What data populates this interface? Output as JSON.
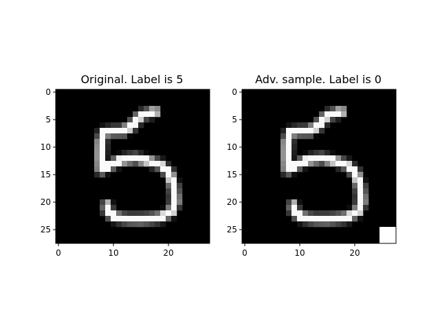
{
  "chart_data": [
    {
      "type": "heatmap",
      "title": "Original. Label is 5",
      "colormap": "gray",
      "xlim": [
        -0.5,
        27.5
      ],
      "ylim": [
        27.5,
        -0.5
      ],
      "x_ticks": [
        0,
        10,
        20
      ],
      "y_ticks": [
        0,
        5,
        10,
        15,
        20,
        25
      ],
      "shape": [
        28,
        28
      ],
      "strokes": [
        [
          [
            17.5,
            3.6
          ],
          [
            15,
            4.2
          ],
          [
            13.2,
            6.2
          ],
          [
            11.8,
            7.1
          ]
        ],
        [
          [
            11.8,
            7.1
          ],
          [
            9.8,
            7.1
          ],
          [
            8.2,
            7.3
          ]
        ],
        [
          [
            8.2,
            7.3
          ],
          [
            7.8,
            9
          ],
          [
            7.7,
            12
          ],
          [
            7.8,
            14.1
          ]
        ],
        [
          [
            7.8,
            14.1
          ],
          [
            9.6,
            13.2
          ],
          [
            11.5,
            12.3
          ],
          [
            14,
            12
          ],
          [
            16,
            12.4
          ],
          [
            18.5,
            13.2
          ],
          [
            20.2,
            14.8
          ]
        ],
        [
          [
            20.2,
            14.8
          ],
          [
            21,
            17.2
          ],
          [
            21.2,
            19.8
          ],
          [
            20.6,
            21.7
          ]
        ],
        [
          [
            20.6,
            21.7
          ],
          [
            18.5,
            22.8
          ],
          [
            15.5,
            23.1
          ],
          [
            12.5,
            23.1
          ],
          [
            10.2,
            22.7
          ],
          [
            9.1,
            21.9
          ],
          [
            8.8,
            20.6
          ]
        ]
      ],
      "extra_pixels": []
    },
    {
      "type": "heatmap",
      "title": "Adv. sample. Label is 0",
      "colormap": "gray",
      "xlim": [
        -0.5,
        27.5
      ],
      "ylim": [
        27.5,
        -0.5
      ],
      "x_ticks": [
        0,
        10,
        20
      ],
      "y_ticks": [
        0,
        5,
        10,
        15,
        20,
        25
      ],
      "shape": [
        28,
        28
      ],
      "strokes": [
        [
          [
            17.5,
            3.6
          ],
          [
            15,
            4.2
          ],
          [
            13.2,
            6.2
          ],
          [
            11.8,
            7.1
          ]
        ],
        [
          [
            11.8,
            7.1
          ],
          [
            9.8,
            7.1
          ],
          [
            8.2,
            7.3
          ]
        ],
        [
          [
            8.2,
            7.3
          ],
          [
            7.8,
            9
          ],
          [
            7.7,
            12
          ],
          [
            7.8,
            14.1
          ]
        ],
        [
          [
            7.8,
            14.1
          ],
          [
            9.6,
            13.2
          ],
          [
            11.5,
            12.3
          ],
          [
            14,
            12
          ],
          [
            16,
            12.4
          ],
          [
            18.5,
            13.2
          ],
          [
            20.2,
            14.8
          ]
        ],
        [
          [
            20.2,
            14.8
          ],
          [
            21,
            17.2
          ],
          [
            21.2,
            19.8
          ],
          [
            20.6,
            21.7
          ]
        ],
        [
          [
            20.6,
            21.7
          ],
          [
            18.5,
            22.8
          ],
          [
            15.5,
            23.1
          ],
          [
            12.5,
            23.1
          ],
          [
            10.2,
            22.7
          ],
          [
            9.1,
            21.9
          ],
          [
            8.8,
            20.6
          ]
        ]
      ],
      "extra_pixels": [
        [
          25,
          25,
          1
        ],
        [
          25,
          26,
          1
        ],
        [
          25,
          27,
          1
        ],
        [
          26,
          25,
          1
        ],
        [
          26,
          26,
          1
        ],
        [
          26,
          27,
          1
        ],
        [
          27,
          25,
          1
        ],
        [
          27,
          26,
          1
        ],
        [
          27,
          27,
          1
        ]
      ]
    }
  ]
}
